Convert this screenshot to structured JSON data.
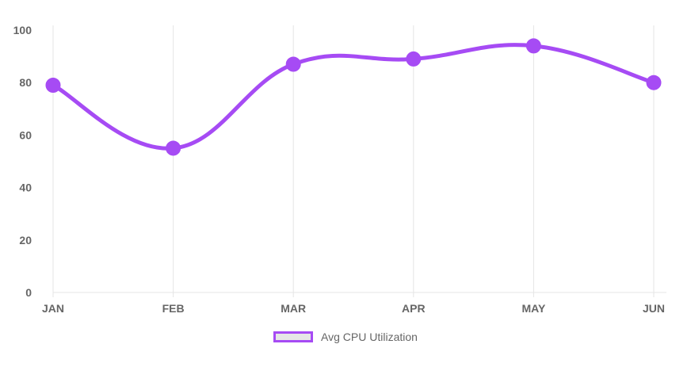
{
  "chart_data": {
    "type": "line",
    "categories": [
      "JAN",
      "FEB",
      "MAR",
      "APR",
      "MAY",
      "JUN"
    ],
    "series": [
      {
        "name": "Avg CPU Utilization",
        "values": [
          79,
          55,
          87,
          89,
          94,
          80
        ]
      }
    ],
    "ylim": [
      0,
      100
    ],
    "yticks": [
      0,
      20,
      40,
      60,
      80,
      100
    ],
    "grid": "vertical",
    "legend": "bottom",
    "colors": {
      "line": "#a64bf4",
      "point": "#a64bf4",
      "grid": "#e5e5e5",
      "axis_text": "#666666",
      "legend_fill": "#e6e6e6"
    }
  }
}
